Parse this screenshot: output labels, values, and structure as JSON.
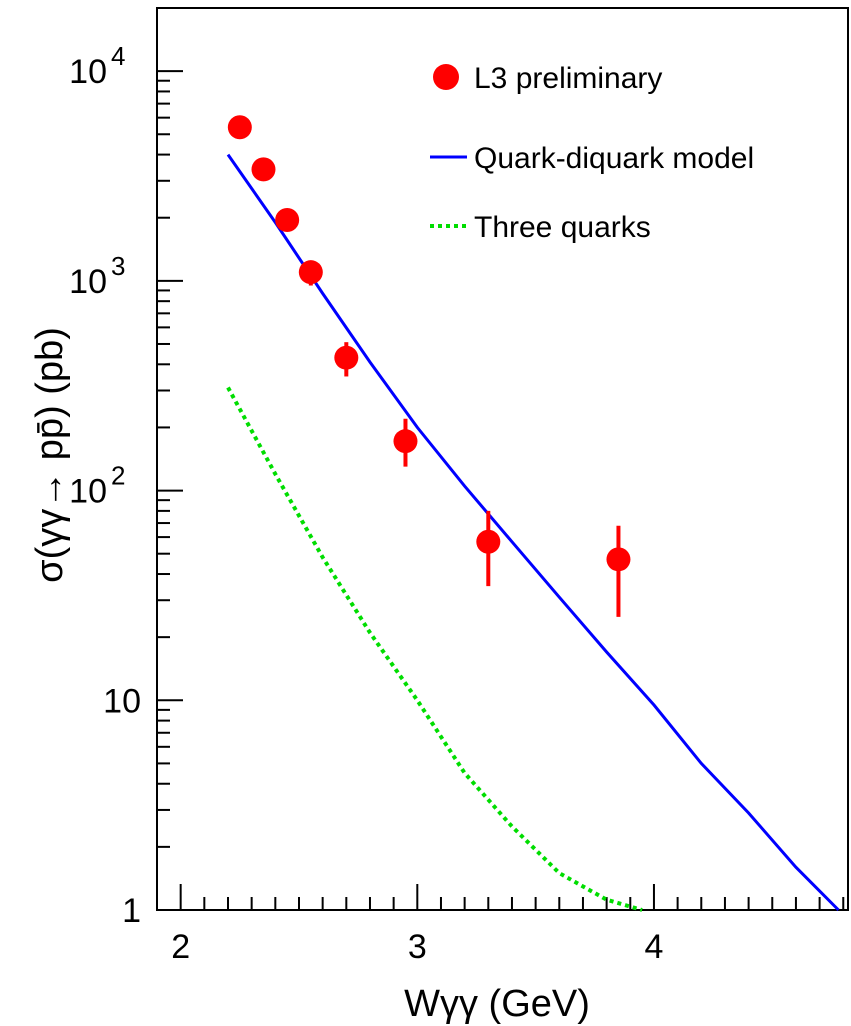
{
  "chart_data": {
    "type": "scatter",
    "xlabel": "Wγγ (GeV)",
    "ylabel": "σ(γγ→ pp̄) (pb)",
    "xlim": [
      1.9,
      4.82
    ],
    "ylim": [
      1,
      20000
    ],
    "yscale": "log",
    "x_ticks": [
      "2",
      "3",
      "4"
    ],
    "y_ticks": [
      {
        "base": "10",
        "exp": "4",
        "value": 10000
      },
      {
        "base": "10",
        "exp": "3",
        "value": 1000
      },
      {
        "base": "10",
        "exp": "2",
        "value": 100
      },
      {
        "base": "10",
        "exp": "",
        "value": 10
      },
      {
        "base": "1",
        "exp": "",
        "value": 1
      }
    ],
    "legend_position": "top-right",
    "series": [
      {
        "name": "L3 preliminary",
        "kind": "points",
        "color": "#ff0000",
        "x": [
          2.25,
          2.35,
          2.45,
          2.55,
          2.7,
          2.95,
          3.3,
          3.85
        ],
        "y": [
          5400,
          3400,
          1950,
          1100,
          430,
          172,
          57,
          47
        ],
        "yerr_low": [
          5100,
          3200,
          1800,
          950,
          350,
          130,
          35,
          25
        ],
        "yerr_high": [
          5700,
          3600,
          2100,
          1250,
          510,
          220,
          80,
          68
        ]
      },
      {
        "name": "Quark-diquark model",
        "kind": "line",
        "style": "solid",
        "color": "#0000ff",
        "x": [
          2.2,
          2.4,
          2.6,
          2.8,
          3.0,
          3.2,
          3.4,
          3.6,
          3.8,
          4.0,
          4.2,
          4.4,
          4.6,
          4.78
        ],
        "y": [
          4000,
          1900,
          870,
          410,
          200,
          105,
          57,
          31,
          17,
          9.5,
          5.0,
          2.9,
          1.6,
          1.0
        ]
      },
      {
        "name": "Three quarks",
        "kind": "line",
        "style": "dotted",
        "color": "#00dd00",
        "x": [
          2.2,
          2.4,
          2.6,
          2.8,
          3.0,
          3.2,
          3.4,
          3.6,
          3.8,
          3.95
        ],
        "y": [
          310,
          120,
          48,
          21,
          10,
          4.5,
          2.5,
          1.5,
          1.12,
          1.0
        ]
      }
    ]
  }
}
